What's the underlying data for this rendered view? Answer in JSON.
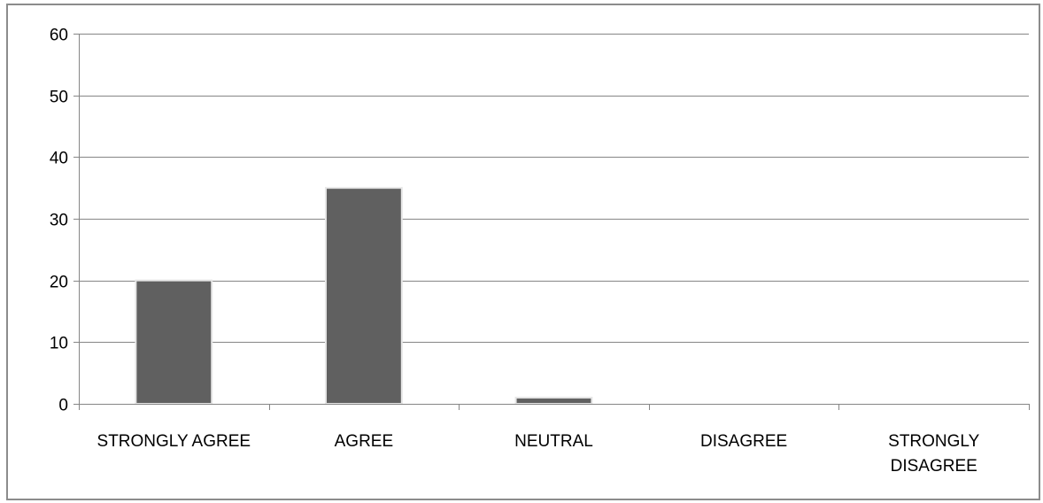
{
  "chart_data": {
    "type": "bar",
    "categories": [
      [
        "STRONGLY AGREE"
      ],
      [
        "AGREE"
      ],
      [
        "NEUTRAL"
      ],
      [
        "DISAGREE"
      ],
      [
        "STRONGLY",
        "DISAGREE"
      ]
    ],
    "values": [
      20,
      35,
      1,
      0,
      0
    ],
    "ylim": [
      0,
      60
    ],
    "yticks": [
      "0",
      "10",
      "20",
      "30",
      "40",
      "50",
      "60"
    ],
    "grid": true,
    "legend": "none",
    "bar_color": "#606060",
    "bar_edge_color": "#e6e6e6",
    "grid_color": "#868686",
    "axis_color": "#868686"
  }
}
